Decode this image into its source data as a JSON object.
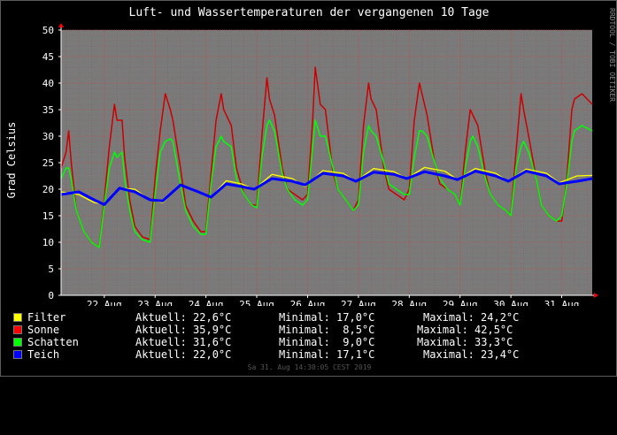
{
  "chart_data": {
    "type": "line",
    "title": "Luft- und Wassertemperaturen der vergangenen 10 Tage",
    "ylabel": "Grad Celsius",
    "side_label": "RRDTOOL / TOBI OETIKER",
    "ylim": [
      0,
      50
    ],
    "yticks": [
      "0",
      "5",
      "10",
      "15",
      "20",
      "25",
      "30",
      "35",
      "40",
      "45",
      "50"
    ],
    "xlim_days": [
      21.15,
      31.6
    ],
    "xticks": [
      {
        "day": 22,
        "label": "22 Aug"
      },
      {
        "day": 23,
        "label": "23 Aug"
      },
      {
        "day": 24,
        "label": "24 Aug"
      },
      {
        "day": 25,
        "label": "25 Aug"
      },
      {
        "day": 26,
        "label": "26 Aug"
      },
      {
        "day": 27,
        "label": "27 Aug"
      },
      {
        "day": 28,
        "label": "28 Aug"
      },
      {
        "day": 29,
        "label": "29 Aug"
      },
      {
        "day": 30,
        "label": "30 Aug"
      },
      {
        "day": 31,
        "label": "31 Aug"
      }
    ],
    "grid": true,
    "series": [
      {
        "name": "Sonne",
        "color": "#cc0000",
        "x": [
          21.15,
          21.25,
          21.3,
          21.35,
          21.45,
          21.6,
          21.75,
          21.9,
          22.0,
          22.1,
          22.2,
          22.25,
          22.35,
          22.4,
          22.5,
          22.6,
          22.75,
          22.9,
          23.0,
          23.1,
          23.2,
          23.3,
          23.35,
          23.5,
          23.6,
          23.75,
          23.9,
          24.0,
          24.1,
          24.2,
          24.3,
          24.35,
          24.5,
          24.6,
          24.75,
          24.9,
          25.0,
          25.1,
          25.2,
          25.25,
          25.35,
          25.5,
          25.6,
          25.75,
          25.9,
          26.0,
          26.1,
          26.15,
          26.25,
          26.35,
          26.5,
          26.6,
          26.75,
          26.9,
          27.0,
          27.1,
          27.2,
          27.25,
          27.35,
          27.5,
          27.6,
          27.75,
          27.9,
          28.0,
          28.1,
          28.2,
          28.25,
          28.35,
          28.5,
          28.6,
          28.75,
          28.9,
          29.0,
          29.1,
          29.2,
          29.25,
          29.35,
          29.5,
          29.6,
          29.75,
          29.9,
          30.0,
          30.1,
          30.2,
          30.25,
          30.35,
          30.5,
          30.6,
          30.75,
          30.9,
          31.0,
          31.1,
          31.2,
          31.25,
          31.4,
          31.6
        ],
        "y": [
          24,
          27,
          31,
          25,
          16,
          12,
          10,
          9,
          18,
          28,
          36,
          33,
          33,
          26,
          18,
          13,
          11,
          10.5,
          22,
          31,
          38,
          35,
          33,
          24,
          17,
          14,
          12,
          12,
          23,
          33,
          38,
          35,
          32,
          24,
          19,
          17,
          17,
          30,
          41,
          37,
          34,
          24,
          20,
          19,
          18,
          19,
          33,
          43,
          36,
          35,
          23,
          20,
          18,
          16,
          18,
          32,
          40,
          37,
          35,
          24,
          20,
          19,
          18,
          20,
          33,
          40,
          38,
          34,
          25,
          21,
          20,
          19,
          17,
          27,
          35,
          34,
          32,
          23,
          19,
          17,
          16,
          15,
          27,
          38,
          35,
          30,
          22,
          17,
          15,
          14,
          14,
          22,
          35,
          37,
          38,
          36
        ]
      },
      {
        "name": "Schatten",
        "color": "#00ff00",
        "x": [
          21.15,
          21.25,
          21.3,
          21.35,
          21.45,
          21.6,
          21.75,
          21.9,
          22.0,
          22.1,
          22.2,
          22.25,
          22.35,
          22.4,
          22.5,
          22.6,
          22.75,
          22.9,
          23.0,
          23.1,
          23.2,
          23.3,
          23.35,
          23.5,
          23.6,
          23.75,
          23.9,
          24.0,
          24.1,
          24.2,
          24.3,
          24.35,
          24.5,
          24.6,
          24.75,
          24.9,
          25.0,
          25.1,
          25.2,
          25.25,
          25.35,
          25.5,
          25.6,
          25.75,
          25.9,
          26.0,
          26.1,
          26.15,
          26.25,
          26.35,
          26.5,
          26.6,
          26.75,
          26.9,
          27.0,
          27.1,
          27.2,
          27.25,
          27.35,
          27.5,
          27.6,
          27.75,
          27.9,
          28.0,
          28.1,
          28.2,
          28.25,
          28.35,
          28.5,
          28.6,
          28.75,
          28.9,
          29.0,
          29.1,
          29.2,
          29.25,
          29.35,
          29.5,
          29.6,
          29.75,
          29.9,
          30.0,
          30.1,
          30.2,
          30.25,
          30.35,
          30.5,
          30.6,
          30.75,
          30.9,
          31.0,
          31.1,
          31.2,
          31.25,
          31.4,
          31.6
        ],
        "y": [
          22,
          24,
          24,
          22,
          16,
          12,
          10,
          9,
          17,
          24,
          27,
          26,
          27,
          22,
          16,
          12,
          10.5,
          10,
          19,
          27,
          29,
          29.5,
          29,
          21,
          16,
          13,
          11.5,
          11.5,
          21,
          28,
          30,
          29,
          28,
          22,
          19,
          17,
          16.5,
          26,
          32,
          33,
          31,
          23,
          20,
          18,
          17,
          18,
          28,
          33,
          30,
          30,
          24,
          20,
          18,
          16,
          17,
          27,
          32,
          31,
          30,
          25,
          21,
          20,
          19,
          19,
          26,
          31,
          31,
          30,
          25,
          22,
          20,
          19,
          17,
          24,
          29,
          30,
          28,
          22,
          19,
          17,
          16,
          15,
          24,
          28,
          29,
          27,
          22,
          17,
          15,
          14,
          15,
          21,
          29,
          31,
          32,
          31
        ]
      },
      {
        "name": "Filter",
        "color": "#ffff00",
        "x": [
          21.15,
          21.5,
          21.8,
          22.0,
          22.3,
          22.6,
          22.9,
          23.15,
          23.5,
          23.85,
          24.1,
          24.4,
          24.7,
          24.95,
          25.3,
          25.7,
          25.95,
          26.3,
          26.7,
          26.95,
          27.3,
          27.7,
          27.95,
          28.3,
          28.7,
          28.95,
          29.3,
          29.7,
          29.95,
          30.3,
          30.7,
          30.95,
          31.3,
          31.6
        ],
        "y": [
          19.5,
          19,
          17.5,
          17.2,
          20.2,
          20,
          18,
          17.5,
          20.8,
          19.5,
          18.5,
          21.6,
          21,
          20,
          22.8,
          22,
          20.5,
          23.5,
          23,
          21.5,
          23.9,
          23.3,
          22,
          24.1,
          23.4,
          21.8,
          23.9,
          23,
          21.5,
          23.8,
          23,
          21.2,
          22.5,
          22.6
        ]
      },
      {
        "name": "Teich",
        "color": "#0000ff",
        "x": [
          21.15,
          21.5,
          21.8,
          22.0,
          22.3,
          22.6,
          22.9,
          23.15,
          23.5,
          23.85,
          24.1,
          24.4,
          24.7,
          24.95,
          25.3,
          25.7,
          25.95,
          26.3,
          26.7,
          26.95,
          27.3,
          27.7,
          27.95,
          28.3,
          28.7,
          28.95,
          29.3,
          29.7,
          29.95,
          30.3,
          30.7,
          30.95,
          31.3,
          31.6
        ],
        "y": [
          19,
          19.5,
          18,
          17.1,
          20.2,
          19.5,
          18,
          17.8,
          20.8,
          19.5,
          18.5,
          21,
          20.5,
          20,
          22,
          21.5,
          20.8,
          23,
          22.5,
          21.5,
          23.2,
          22.8,
          22,
          23.3,
          22.5,
          21.8,
          23.4,
          22.5,
          21.5,
          23.4,
          22.5,
          21,
          21.5,
          22
        ]
      }
    ]
  },
  "legend": [
    {
      "name": "Filter",
      "color": "#ffff00",
      "aktuell": "Aktuell: 22,6°C",
      "minimal": "Minimal: 17,0°C",
      "maximal": "Maximal: 24,2°C"
    },
    {
      "name": "Sonne",
      "color": "#ff0000",
      "aktuell": "Aktuell: 35,9°C",
      "minimal": "Minimal:  8,5°C",
      "maximal": "Maximal: 42,5°C"
    },
    {
      "name": "Schatten",
      "color": "#00ff00",
      "aktuell": "Aktuell: 31,6°C",
      "minimal": "Minimal:  9,0°C",
      "maximal": "Maximal: 33,3°C"
    },
    {
      "name": "Teich",
      "color": "#0000ff",
      "aktuell": "Aktuell: 22,0°C",
      "minimal": "Minimal: 17,1°C",
      "maximal": "Maximal: 23,4°C"
    }
  ],
  "footer": "Sa 31. Aug 14:30:05 CEST 2019"
}
